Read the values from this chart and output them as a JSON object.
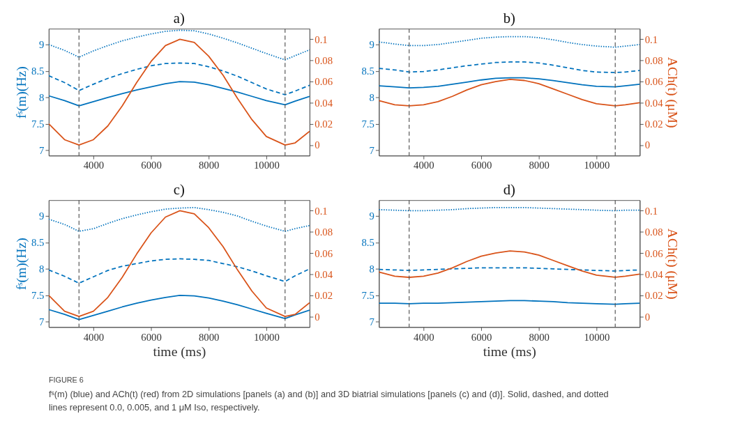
{
  "chart_data": [
    {
      "type": "line",
      "title": "a)",
      "ylabel": "fˢ(m)(Hz)",
      "xlim": [
        2450,
        11500
      ],
      "xticks": [
        4000,
        6000,
        8000,
        10000
      ],
      "ylim": [
        6.9,
        9.3
      ],
      "yticks": [
        7,
        7.5,
        8,
        8.5,
        9
      ],
      "y2lim": [
        -0.01,
        0.11
      ],
      "y2ticks": [
        0,
        0.02,
        0.04,
        0.06,
        0.08,
        0.1
      ],
      "x": [
        2450,
        3000,
        3500,
        4000,
        4500,
        5000,
        5500,
        6000,
        6500,
        7000,
        7500,
        8000,
        8500,
        9000,
        9500,
        10000,
        10650,
        11000,
        11500
      ],
      "series": [
        {
          "color": "#0072bd",
          "line_style": "solid",
          "values": [
            8.03,
            7.94,
            7.84,
            7.92,
            8.0,
            8.07,
            8.14,
            8.2,
            8.26,
            8.3,
            8.29,
            8.24,
            8.17,
            8.1,
            8.02,
            7.94,
            7.86,
            7.93,
            8.02
          ]
        },
        {
          "color": "#0072bd",
          "line_style": "dashed",
          "values": [
            8.41,
            8.28,
            8.13,
            8.25,
            8.36,
            8.45,
            8.53,
            8.6,
            8.64,
            8.65,
            8.64,
            8.58,
            8.5,
            8.4,
            8.28,
            8.16,
            8.05,
            8.12,
            8.23
          ]
        },
        {
          "color": "#0072bd",
          "line_style": "dotted",
          "values": [
            9.0,
            8.89,
            8.76,
            8.88,
            8.98,
            9.07,
            9.14,
            9.2,
            9.25,
            9.27,
            9.26,
            9.2,
            9.12,
            9.03,
            8.93,
            8.83,
            8.71,
            8.79,
            8.9
          ]
        },
        {
          "color": "#d95319",
          "line_style": "solid",
          "axis": "y2",
          "values": [
            0.02,
            0.005,
            0,
            0.005,
            0.018,
            0.037,
            0.059,
            0.079,
            0.094,
            0.1,
            0.097,
            0.084,
            0.066,
            0.044,
            0.024,
            0.008,
            0,
            0.002,
            0.013
          ]
        }
      ],
      "ref_lines": [
        {
          "axis": "x",
          "value": 3500,
          "color": "#555555",
          "line_style": "dashed"
        },
        {
          "axis": "x",
          "value": 10650,
          "color": "#555555",
          "line_style": "dashed"
        }
      ],
      "annotations": [
        "FIGURE 6",
        "fˢ(m) (blue) and ACh(t) (red) from 2D simulations [panels (a) and (b)] and 3D biatrial simulations [panels (c) and (d)]. Solid, dashed, and dotted lines represent 0.0, 0.005, and 1 μM Iso, respectively."
      ]
    },
    {
      "type": "line",
      "title": "b)",
      "y2label": "ACh(t) (μM)",
      "xlim": [
        2450,
        11500
      ],
      "xticks": [
        4000,
        6000,
        8000,
        10000
      ],
      "ylim": [
        6.9,
        9.3
      ],
      "yticks": [
        7,
        7.5,
        8,
        8.5,
        9
      ],
      "y2lim": [
        -0.01,
        0.11
      ],
      "y2ticks": [
        0,
        0.02,
        0.04,
        0.06,
        0.08,
        0.1
      ],
      "x": [
        2450,
        3000,
        3500,
        4000,
        4500,
        5000,
        5500,
        6000,
        6500,
        7000,
        7500,
        8000,
        8500,
        9000,
        9500,
        10000,
        10650,
        11000,
        11500
      ],
      "series": [
        {
          "color": "#0072bd",
          "line_style": "solid",
          "values": [
            8.22,
            8.2,
            8.18,
            8.19,
            8.21,
            8.25,
            8.29,
            8.33,
            8.36,
            8.37,
            8.37,
            8.35,
            8.32,
            8.28,
            8.24,
            8.21,
            8.2,
            8.22,
            8.25
          ]
        },
        {
          "color": "#0072bd",
          "line_style": "dashed",
          "values": [
            8.55,
            8.52,
            8.48,
            8.49,
            8.52,
            8.56,
            8.6,
            8.63,
            8.66,
            8.67,
            8.67,
            8.65,
            8.61,
            8.56,
            8.51,
            8.48,
            8.47,
            8.48,
            8.51
          ]
        },
        {
          "color": "#0072bd",
          "line_style": "dotted",
          "values": [
            9.05,
            9.01,
            8.98,
            8.98,
            9.0,
            9.04,
            9.08,
            9.12,
            9.14,
            9.15,
            9.15,
            9.13,
            9.09,
            9.04,
            9.0,
            8.97,
            8.95,
            8.97,
            9.0
          ]
        },
        {
          "color": "#d95319",
          "line_style": "solid",
          "axis": "y2",
          "values": [
            0.042,
            0.038,
            0.037,
            0.038,
            0.041,
            0.046,
            0.052,
            0.057,
            0.06,
            0.062,
            0.061,
            0.058,
            0.053,
            0.048,
            0.043,
            0.039,
            0.037,
            0.038,
            0.04
          ]
        }
      ],
      "ref_lines": [
        {
          "axis": "x",
          "value": 3500,
          "color": "#555555",
          "line_style": "dashed"
        },
        {
          "axis": "x",
          "value": 10650,
          "color": "#555555",
          "line_style": "dashed"
        }
      ]
    },
    {
      "type": "line",
      "title": "c)",
      "ylabel": "fˢ(m)(Hz)",
      "xlabel": "time (ms)",
      "xlim": [
        2450,
        11500
      ],
      "xticks": [
        4000,
        6000,
        8000,
        10000
      ],
      "ylim": [
        6.9,
        9.3
      ],
      "yticks": [
        7,
        7.5,
        8,
        8.5,
        9
      ],
      "y2lim": [
        -0.01,
        0.11
      ],
      "y2ticks": [
        0,
        0.02,
        0.04,
        0.06,
        0.08,
        0.1
      ],
      "x": [
        2450,
        3000,
        3500,
        4000,
        4500,
        5000,
        5500,
        6000,
        6500,
        7000,
        7500,
        8000,
        8500,
        9000,
        9500,
        10000,
        10650,
        11000,
        11500
      ],
      "series": [
        {
          "color": "#0072bd",
          "line_style": "solid",
          "values": [
            7.23,
            7.14,
            7.04,
            7.12,
            7.2,
            7.28,
            7.35,
            7.41,
            7.46,
            7.5,
            7.49,
            7.45,
            7.39,
            7.32,
            7.24,
            7.16,
            7.06,
            7.13,
            7.22
          ]
        },
        {
          "color": "#0072bd",
          "line_style": "dashed",
          "values": [
            7.98,
            7.86,
            7.73,
            7.85,
            7.97,
            8.05,
            8.1,
            8.15,
            8.18,
            8.19,
            8.18,
            8.16,
            8.1,
            8.04,
            7.96,
            7.87,
            7.76,
            7.87,
            8.0
          ]
        },
        {
          "color": "#0072bd",
          "line_style": "dotted",
          "values": [
            8.94,
            8.84,
            8.71,
            8.76,
            8.86,
            8.95,
            9.02,
            9.08,
            9.13,
            9.15,
            9.16,
            9.12,
            9.07,
            9.0,
            8.9,
            8.81,
            8.71,
            8.76,
            8.82
          ]
        },
        {
          "color": "#d95319",
          "line_style": "solid",
          "axis": "y2",
          "values": [
            0.02,
            0.005,
            0,
            0.005,
            0.018,
            0.037,
            0.059,
            0.079,
            0.094,
            0.1,
            0.097,
            0.084,
            0.066,
            0.044,
            0.024,
            0.008,
            0,
            0.002,
            0.013
          ]
        }
      ],
      "ref_lines": [
        {
          "axis": "x",
          "value": 3500,
          "color": "#555555",
          "line_style": "dashed"
        },
        {
          "axis": "x",
          "value": 10650,
          "color": "#555555",
          "line_style": "dashed"
        }
      ]
    },
    {
      "type": "line",
      "title": "d)",
      "y2label": "ACh(t) (μM)",
      "xlabel": "time (ms)",
      "xlim": [
        2450,
        11500
      ],
      "xticks": [
        4000,
        6000,
        8000,
        10000
      ],
      "ylim": [
        6.9,
        9.3
      ],
      "yticks": [
        7,
        7.5,
        8,
        8.5,
        9
      ],
      "y2lim": [
        -0.01,
        0.11
      ],
      "y2ticks": [
        0,
        0.02,
        0.04,
        0.06,
        0.08,
        0.1
      ],
      "x": [
        2450,
        3000,
        3500,
        4000,
        4500,
        5000,
        5500,
        6000,
        6500,
        7000,
        7500,
        8000,
        8500,
        9000,
        9500,
        10000,
        10650,
        11000,
        11500
      ],
      "series": [
        {
          "color": "#0072bd",
          "line_style": "solid",
          "values": [
            7.35,
            7.35,
            7.34,
            7.35,
            7.35,
            7.36,
            7.37,
            7.38,
            7.39,
            7.4,
            7.4,
            7.39,
            7.38,
            7.36,
            7.35,
            7.34,
            7.33,
            7.34,
            7.35
          ]
        },
        {
          "color": "#0072bd",
          "line_style": "dashed",
          "values": [
            7.99,
            7.98,
            7.97,
            7.98,
            7.99,
            8.0,
            8.01,
            8.02,
            8.02,
            8.02,
            8.02,
            8.01,
            8.0,
            7.99,
            7.98,
            7.97,
            7.96,
            7.97,
            7.98
          ]
        },
        {
          "color": "#0072bd",
          "line_style": "dotted",
          "values": [
            9.12,
            9.11,
            9.1,
            9.1,
            9.11,
            9.12,
            9.14,
            9.15,
            9.16,
            9.16,
            9.16,
            9.15,
            9.14,
            9.13,
            9.12,
            9.11,
            9.1,
            9.11,
            9.11
          ]
        },
        {
          "color": "#d95319",
          "line_style": "solid",
          "axis": "y2",
          "values": [
            0.042,
            0.038,
            0.037,
            0.038,
            0.041,
            0.046,
            0.052,
            0.057,
            0.06,
            0.062,
            0.061,
            0.058,
            0.053,
            0.048,
            0.043,
            0.039,
            0.037,
            0.038,
            0.04
          ]
        }
      ],
      "ref_lines": [
        {
          "axis": "x",
          "value": 3500,
          "color": "#555555",
          "line_style": "dashed"
        },
        {
          "axis": "x",
          "value": 10650,
          "color": "#555555",
          "line_style": "dashed"
        }
      ]
    }
  ]
}
